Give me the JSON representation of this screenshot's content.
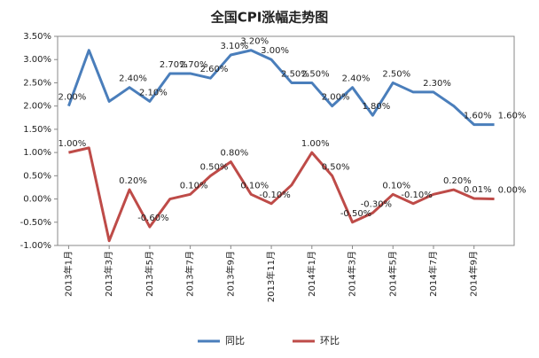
{
  "chart_data": {
    "type": "line",
    "title": "全国CPI涨幅走势图",
    "categories": [
      "2013年1月",
      null,
      "2013年3月",
      null,
      "2013年5月",
      null,
      "2013年7月",
      null,
      "2013年9月",
      null,
      "2013年11月",
      null,
      "2014年1月",
      null,
      "2014年3月",
      null,
      "2014年5月",
      null,
      "2014年7月",
      null,
      "2014年9月",
      null
    ],
    "series": [
      {
        "name": "同比",
        "color": "#4a7ebb",
        "values": [
          2.0,
          3.2,
          2.1,
          2.4,
          2.1,
          2.7,
          2.7,
          2.6,
          3.1,
          3.2,
          3.0,
          2.5,
          2.5,
          2.0,
          2.4,
          1.8,
          2.5,
          2.3,
          2.3,
          2.0,
          1.6,
          1.6
        ],
        "value_labels": [
          "2.00%",
          null,
          null,
          "2.40%",
          "2.10%",
          "2.70%",
          "2.70%",
          "2.60%",
          "3.10%",
          "3.20%",
          "3.00%",
          "2.50%",
          "2.50%",
          "2.00%",
          "2.40%",
          "1.80%",
          "2.50%",
          null,
          "2.30%",
          null,
          "1.60%",
          "1.60%"
        ]
      },
      {
        "name": "环比",
        "color": "#be4b48",
        "values": [
          1.0,
          1.1,
          -0.9,
          0.2,
          -0.6,
          0.0,
          0.1,
          0.5,
          0.8,
          0.1,
          -0.1,
          0.3,
          1.0,
          0.5,
          -0.5,
          -0.3,
          0.1,
          -0.1,
          0.1,
          0.2,
          0.01,
          0.0
        ],
        "value_labels": [
          "1.00%",
          null,
          null,
          "0.20%",
          "-0.60%",
          null,
          "0.10%",
          "0.50%",
          "0.80%",
          "0.10%",
          "-0.10%",
          null,
          "1.00%",
          "0.50%",
          "-0.50%",
          "-0.30%",
          "0.10%",
          "-0.10%",
          null,
          "0.20%",
          "0.01%",
          "0.00%"
        ]
      }
    ],
    "ylim": [
      -1.0,
      3.5
    ],
    "yticks": [
      {
        "value": -1.0,
        "label": "-1.00%"
      },
      {
        "value": -0.5,
        "label": "-0.50%"
      },
      {
        "value": 0.0,
        "label": "0.00%"
      },
      {
        "value": 0.5,
        "label": "0.50%"
      },
      {
        "value": 1.0,
        "label": "1.00%"
      },
      {
        "value": 1.5,
        "label": "1.50%"
      },
      {
        "value": 2.0,
        "label": "2.00%"
      },
      {
        "value": 2.5,
        "label": "2.50%"
      },
      {
        "value": 3.0,
        "label": "3.00%"
      },
      {
        "value": 3.5,
        "label": "3.50%"
      }
    ],
    "legend": "bottom"
  }
}
